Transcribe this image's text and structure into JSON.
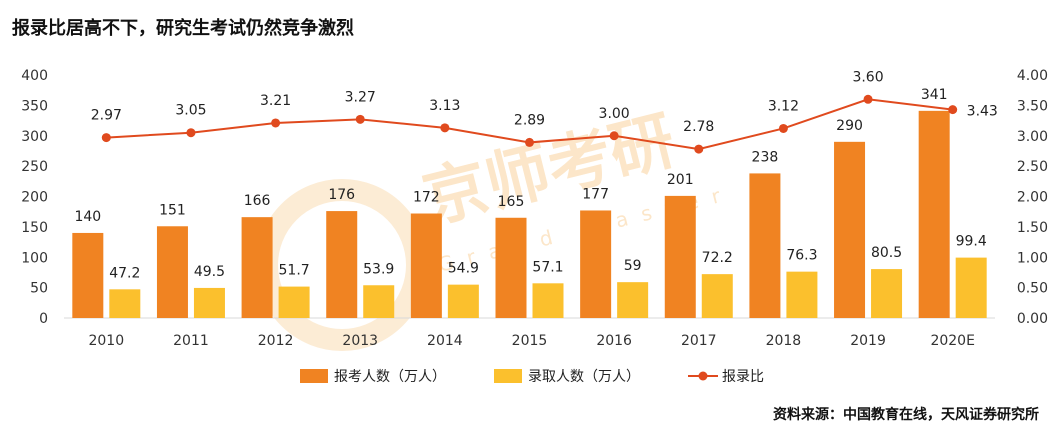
{
  "title": "报录比居高不下，研究生考试仍然竞争激烈",
  "source": "资料来源：中国教育在线，天风证券研究所",
  "watermark": {
    "main": "京师考研",
    "sub": "Grand Master"
  },
  "chart_data": {
    "type": "bar",
    "categories": [
      "2010",
      "2011",
      "2012",
      "2013",
      "2014",
      "2015",
      "2016",
      "2017",
      "2018",
      "2019",
      "2020E"
    ],
    "series": [
      {
        "name": "报考人数（万人）",
        "type": "bar",
        "axis": "left",
        "color": "#F08322",
        "values": [
          140,
          151,
          166,
          176,
          172,
          165,
          177,
          201,
          238,
          290,
          341
        ],
        "labels": [
          "140",
          "151",
          "166",
          "176",
          "172",
          "165",
          "177",
          "201",
          "238",
          "290",
          "341"
        ]
      },
      {
        "name": "录取人数（万人）",
        "type": "bar",
        "axis": "left",
        "color": "#FBC02D",
        "values": [
          47.2,
          49.5,
          51.7,
          53.9,
          54.9,
          57.1,
          59,
          72.2,
          76.3,
          80.5,
          99.4
        ],
        "labels": [
          "47.2",
          "49.5",
          "51.7",
          "53.9",
          "54.9",
          "57.1",
          "59",
          "72.2",
          "76.3",
          "80.5",
          "99.4"
        ]
      },
      {
        "name": "报录比",
        "type": "line",
        "axis": "right",
        "color": "#E04A1E",
        "values": [
          2.97,
          3.05,
          3.21,
          3.27,
          3.13,
          2.89,
          3.0,
          2.78,
          3.12,
          3.6,
          3.43
        ],
        "labels": [
          "2.97",
          "3.05",
          "3.21",
          "3.27",
          "3.13",
          "2.89",
          "3.00",
          "2.78",
          "3.12",
          "3.60",
          "3.43"
        ]
      }
    ],
    "y_left": {
      "ylim": [
        0,
        400
      ],
      "ticks": [
        "0",
        "50",
        "100",
        "150",
        "200",
        "250",
        "300",
        "350",
        "400"
      ]
    },
    "y_right": {
      "ylim": [
        0,
        4
      ],
      "ticks": [
        "0.00",
        "0.50",
        "1.00",
        "1.50",
        "2.00",
        "2.50",
        "3.00",
        "3.50",
        "4.00"
      ]
    },
    "grid": false,
    "legend": "bottom"
  }
}
